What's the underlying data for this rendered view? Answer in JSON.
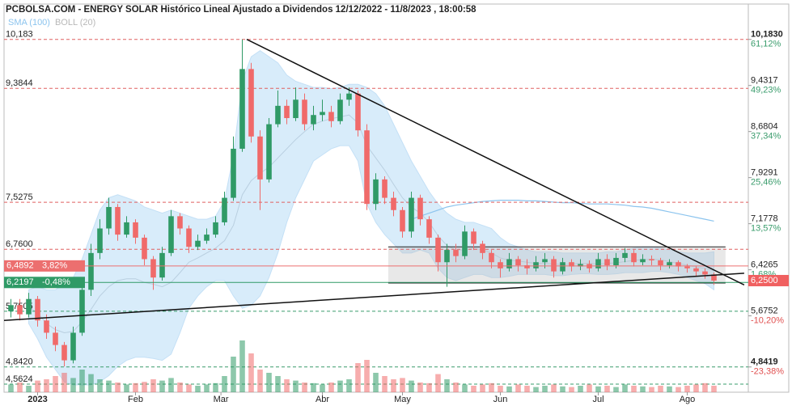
{
  "chart_data": {
    "type": "candlestick",
    "title": "PCBOLSA.COM - ENERGY SOLAR Histórico Lineal Ajustado a Dividendos 12/12/2022 - 11/8/2023 , 18:00:58",
    "legend": [
      {
        "name": "SMA (100)",
        "color": "#8cc4ee"
      },
      {
        "name": "BOLL (20)",
        "color": "#b8b8b8"
      }
    ],
    "xlim": [
      -0.5,
      82.5
    ],
    "ylim": [
      4.43,
      10.72
    ],
    "xticks": [
      {
        "value": 3,
        "label": "2023"
      },
      {
        "value": 14,
        "label": "Feb"
      },
      {
        "value": 23.6,
        "label": "Mar"
      },
      {
        "value": 35,
        "label": "Abr"
      },
      {
        "value": 44,
        "label": "May"
      },
      {
        "value": 55,
        "label": "Jun"
      },
      {
        "value": 66,
        "label": "Jul"
      },
      {
        "value": 76,
        "label": "Ago"
      }
    ],
    "up_color": "#2f9a66",
    "down_color": "#f06a6a",
    "open": [
      5.75,
      5.85,
      5.7,
      5.95,
      5.6,
      5.4,
      5.2,
      4.95,
      5.4,
      6.1,
      6.7,
      7.1,
      7.45,
      7.0,
      7.2,
      6.95,
      6.6,
      6.3,
      6.7,
      7.3,
      7.1,
      6.8,
      6.9,
      7.0,
      7.2,
      7.6,
      8.4,
      9.7,
      8.6,
      7.9,
      8.8,
      9.1,
      8.9,
      9.2,
      8.8,
      8.95,
      9.0,
      8.85,
      9.2,
      9.3,
      8.7,
      7.5,
      7.9,
      7.6,
      7.4,
      7.05,
      7.6,
      7.25,
      6.95,
      6.55,
      6.75,
      6.65,
      7.05,
      6.85,
      6.7,
      6.55,
      6.45,
      6.6,
      6.5,
      6.45,
      6.55,
      6.6,
      6.4,
      6.55,
      6.48,
      6.52,
      6.45,
      6.6,
      6.5,
      6.62,
      6.7,
      6.55,
      6.6,
      6.58,
      6.5,
      6.55,
      6.48,
      6.45,
      6.4,
      6.35
    ],
    "high": [
      5.95,
      5.95,
      6.05,
      6.0,
      5.7,
      5.5,
      5.25,
      5.5,
      6.2,
      6.85,
      7.25,
      7.6,
      7.5,
      7.3,
      7.25,
      7.0,
      6.65,
      6.8,
      7.4,
      7.35,
      7.15,
      7.0,
      7.1,
      7.3,
      7.7,
      8.6,
      10.183,
      9.8,
      8.7,
      8.9,
      9.35,
      9.2,
      9.4,
      9.3,
      9.1,
      9.2,
      9.1,
      9.3,
      9.4,
      9.35,
      8.8,
      8.0,
      7.95,
      7.7,
      7.45,
      7.7,
      7.65,
      7.3,
      7.0,
      6.85,
      6.85,
      7.15,
      7.1,
      6.9,
      6.75,
      6.6,
      6.7,
      6.65,
      6.6,
      6.65,
      6.7,
      6.65,
      6.62,
      6.6,
      6.6,
      6.58,
      6.7,
      6.68,
      6.7,
      6.78,
      6.75,
      6.68,
      6.66,
      6.62,
      6.6,
      6.58,
      6.52,
      6.48,
      6.45,
      6.38
    ],
    "low": [
      5.65,
      5.6,
      5.65,
      5.5,
      5.3,
      5.1,
      4.85,
      4.9,
      5.35,
      6.0,
      6.6,
      7.0,
      6.9,
      6.95,
      6.85,
      6.5,
      6.1,
      6.25,
      6.65,
      7.0,
      6.7,
      6.75,
      6.85,
      6.95,
      7.15,
      7.55,
      8.35,
      8.5,
      7.4,
      7.85,
      8.75,
      8.8,
      8.85,
      8.7,
      8.7,
      8.85,
      8.75,
      8.8,
      9.1,
      8.6,
      7.4,
      7.4,
      7.5,
      7.3,
      6.95,
      6.95,
      7.15,
      6.85,
      6.4,
      6.15,
      6.55,
      6.6,
      6.75,
      6.6,
      6.45,
      6.3,
      6.4,
      6.4,
      6.35,
      6.4,
      6.45,
      6.3,
      6.35,
      6.4,
      6.42,
      6.38,
      6.4,
      6.42,
      6.45,
      6.55,
      6.48,
      6.5,
      6.5,
      6.42,
      6.45,
      6.4,
      6.38,
      6.32,
      6.28,
      6.18
    ],
    "close": [
      5.85,
      5.7,
      5.95,
      5.6,
      5.4,
      5.2,
      4.95,
      5.4,
      6.1,
      6.7,
      7.1,
      7.45,
      7.0,
      7.2,
      6.95,
      6.6,
      6.3,
      6.7,
      7.3,
      7.1,
      6.8,
      6.9,
      7.0,
      7.2,
      7.6,
      8.4,
      9.7,
      8.6,
      7.9,
      8.8,
      9.1,
      8.9,
      9.2,
      8.8,
      8.95,
      9.0,
      8.85,
      9.2,
      9.3,
      8.7,
      7.5,
      7.9,
      7.6,
      7.4,
      7.05,
      7.6,
      7.25,
      6.95,
      6.55,
      6.75,
      6.65,
      7.05,
      6.85,
      6.7,
      6.55,
      6.45,
      6.6,
      6.5,
      6.45,
      6.55,
      6.6,
      6.4,
      6.55,
      6.48,
      6.52,
      6.45,
      6.6,
      6.5,
      6.62,
      6.7,
      6.55,
      6.6,
      6.58,
      6.5,
      6.55,
      6.48,
      6.45,
      6.4,
      6.35,
      6.25
    ],
    "volume": [
      12,
      15,
      10,
      18,
      20,
      25,
      30,
      22,
      35,
      28,
      20,
      18,
      15,
      12,
      14,
      16,
      20,
      18,
      22,
      15,
      12,
      10,
      12,
      14,
      25,
      55,
      80,
      60,
      35,
      30,
      25,
      20,
      18,
      15,
      14,
      12,
      15,
      18,
      20,
      45,
      50,
      30,
      25,
      20,
      22,
      18,
      15,
      14,
      28,
      20,
      15,
      12,
      10,
      12,
      14,
      10,
      9,
      12,
      10,
      8,
      10,
      12,
      9,
      8,
      10,
      12,
      9,
      10,
      8,
      12,
      10,
      9,
      8,
      10,
      9,
      8,
      10,
      12,
      14,
      10
    ],
    "volume_ylim": [
      0,
      100
    ],
    "bollinger": {
      "upper": [
        null,
        null,
        6.1,
        6.15,
        6.1,
        6.1,
        6.2,
        6.3,
        6.6,
        7.0,
        7.4,
        7.6,
        7.65,
        7.6,
        7.55,
        7.45,
        7.4,
        7.35,
        7.4,
        7.35,
        7.3,
        7.25,
        7.25,
        7.3,
        7.55,
        8.3,
        9.5,
        9.9,
        10.0,
        9.9,
        9.8,
        9.6,
        9.5,
        9.45,
        9.4,
        9.4,
        9.38,
        9.4,
        9.45,
        9.45,
        9.4,
        9.3,
        9.1,
        8.8,
        8.5,
        8.2,
        7.95,
        7.7,
        7.5,
        7.35,
        7.25,
        7.2,
        7.2,
        7.15,
        7.1,
        6.95,
        6.85,
        6.8,
        6.75,
        6.72,
        6.72,
        6.72,
        6.7,
        6.7,
        6.7,
        6.7,
        6.7,
        6.72,
        6.72,
        6.75,
        6.78,
        6.8,
        6.8,
        6.78,
        6.75,
        6.72,
        6.7,
        6.7,
        6.7,
        6.72
      ],
      "lower": [
        null,
        null,
        5.55,
        5.3,
        5.0,
        4.8,
        4.6,
        4.55,
        4.55,
        4.55,
        4.6,
        4.7,
        4.85,
        4.95,
        5.0,
        5.0,
        4.98,
        4.95,
        5.05,
        5.4,
        5.8,
        6.0,
        6.15,
        6.25,
        6.25,
        6.0,
        5.8,
        5.85,
        6.0,
        6.3,
        6.7,
        7.2,
        7.6,
        7.9,
        8.2,
        8.3,
        8.4,
        8.45,
        8.45,
        8.2,
        7.5,
        7.2,
        7.0,
        6.85,
        6.7,
        6.7,
        6.75,
        6.7,
        6.45,
        6.3,
        6.25,
        6.3,
        6.35,
        6.35,
        6.3,
        6.3,
        6.32,
        6.35,
        6.35,
        6.35,
        6.35,
        6.33,
        6.33,
        6.35,
        6.36,
        6.36,
        6.35,
        6.35,
        6.36,
        6.38,
        6.38,
        6.38,
        6.4,
        6.4,
        6.38,
        6.35,
        6.3,
        6.25,
        6.2,
        6.1
      ],
      "mid": [
        null,
        null,
        5.82,
        5.72,
        5.55,
        5.45,
        5.4,
        5.42,
        5.58,
        5.78,
        6.0,
        6.15,
        6.25,
        6.28,
        6.28,
        6.22,
        6.19,
        6.15,
        6.22,
        6.38,
        6.55,
        6.62,
        6.7,
        6.78,
        6.9,
        7.15,
        7.65,
        7.88,
        8.0,
        8.1,
        8.25,
        8.4,
        8.55,
        8.68,
        8.8,
        8.85,
        8.89,
        8.92,
        8.95,
        8.82,
        8.45,
        8.25,
        8.05,
        7.82,
        7.6,
        7.45,
        7.35,
        7.2,
        6.98,
        6.82,
        6.75,
        6.75,
        6.78,
        6.75,
        6.7,
        6.62,
        6.58,
        6.57,
        6.55,
        6.53,
        6.53,
        6.52,
        6.51,
        6.52,
        6.53,
        6.53,
        6.52,
        6.53,
        6.54,
        6.56,
        6.58,
        6.59,
        6.6,
        6.59,
        6.56,
        6.53,
        6.5,
        6.47,
        6.45,
        6.41
      ]
    },
    "sma100": [
      null,
      null,
      null,
      null,
      null,
      null,
      null,
      null,
      null,
      null,
      null,
      null,
      null,
      null,
      null,
      null,
      null,
      null,
      null,
      null,
      null,
      null,
      null,
      null,
      null,
      null,
      null,
      null,
      null,
      null,
      null,
      null,
      null,
      null,
      null,
      null,
      null,
      null,
      null,
      null,
      null,
      null,
      null,
      null,
      null,
      7.25,
      7.3,
      7.35,
      7.4,
      7.45,
      7.48,
      7.5,
      7.52,
      7.54,
      7.55,
      7.56,
      7.56,
      7.56,
      7.55,
      7.55,
      7.54,
      7.53,
      7.52,
      7.52,
      7.51,
      7.5,
      7.5,
      7.5,
      7.49,
      7.48,
      7.46,
      7.45,
      7.43,
      7.4,
      7.37,
      7.34,
      7.31,
      7.28,
      7.25,
      7.22
    ],
    "levels": [
      {
        "value": 10.183,
        "label": "10,183",
        "color": "#e06060"
      },
      {
        "value": 9.3844,
        "label": "9,3844",
        "color": "#e06060"
      },
      {
        "value": 7.5275,
        "label": "7,5275",
        "color": "#e06060"
      },
      {
        "value": 6.76,
        "label": "6,7600",
        "color": "#e06060"
      },
      {
        "value": 5.7505,
        "label": "5,7505",
        "color": "#3a9c6c"
      },
      {
        "value": 4.842,
        "label": "4,8420",
        "color": "#3a9c6c"
      },
      {
        "value": 4.5624,
        "label": "4,5624",
        "color": "#3a9c6c"
      }
    ],
    "right_ticks": [
      {
        "value": 10.183,
        "label": "10,1830",
        "pct": "61,12%"
      },
      {
        "value": 9.4317,
        "label": "9,4317",
        "pct": "49,23%"
      },
      {
        "value": 8.6804,
        "label": "8,6804",
        "pct": "37,34%"
      },
      {
        "value": 7.9291,
        "label": "7,9291",
        "pct": "25,46%"
      },
      {
        "value": 7.1778,
        "label": "7,1778",
        "pct": "13,57%"
      },
      {
        "value": 6.4265,
        "label": "6,4265",
        "pct": "1,68%"
      },
      {
        "value": 5.6752,
        "label": "5,6752",
        "pct": "-10,20%"
      },
      {
        "value": 4.8419,
        "label": "4,8419",
        "pct": "-23,38%"
      }
    ],
    "markers": [
      {
        "value": 6.4892,
        "label": "6,4892",
        "change": "3,82%",
        "color": "#ec6f6f"
      },
      {
        "value": 6.2197,
        "label": "6,2197",
        "change": "-0,48%",
        "color": "#2f9a66"
      }
    ],
    "last_price": {
      "value": 6.25,
      "label": "6,2500",
      "color": "#f06060"
    },
    "trendlines": [
      {
        "x": [
          26.5,
          82.4
        ],
        "y": [
          10.183,
          6.18
        ]
      },
      {
        "x": [
          -0.77,
          82.4
        ],
        "y": [
          5.6,
          6.37
        ]
      }
    ],
    "range_box": {
      "x": [
        42.4,
        80.3
      ],
      "y": [
        6.21,
        6.8
      ]
    }
  }
}
